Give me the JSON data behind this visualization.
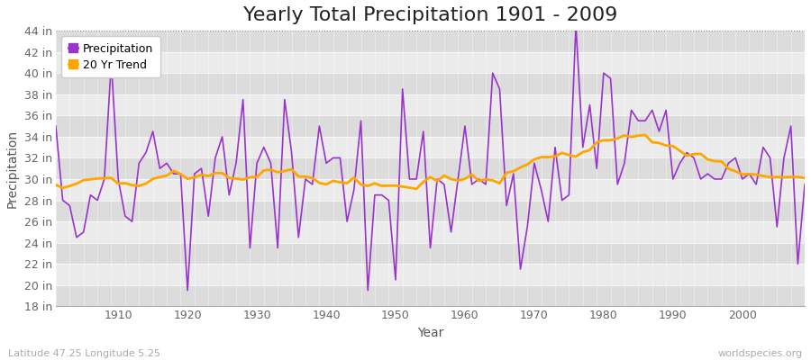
{
  "title": "Yearly Total Precipitation 1901 - 2009",
  "xlabel": "Year",
  "ylabel": "Precipitation",
  "years": [
    1901,
    1902,
    1903,
    1904,
    1905,
    1906,
    1907,
    1908,
    1909,
    1910,
    1911,
    1912,
    1913,
    1914,
    1915,
    1916,
    1917,
    1918,
    1919,
    1920,
    1921,
    1922,
    1923,
    1924,
    1925,
    1926,
    1927,
    1928,
    1929,
    1930,
    1931,
    1932,
    1933,
    1934,
    1935,
    1936,
    1937,
    1938,
    1939,
    1940,
    1941,
    1942,
    1943,
    1944,
    1945,
    1946,
    1947,
    1948,
    1949,
    1950,
    1951,
    1952,
    1953,
    1954,
    1955,
    1956,
    1957,
    1958,
    1959,
    1960,
    1961,
    1962,
    1963,
    1964,
    1965,
    1966,
    1967,
    1968,
    1969,
    1970,
    1971,
    1972,
    1973,
    1974,
    1975,
    1976,
    1977,
    1978,
    1979,
    1980,
    1981,
    1982,
    1983,
    1984,
    1985,
    1986,
    1987,
    1988,
    1989,
    1990,
    1991,
    1992,
    1993,
    1994,
    1995,
    1996,
    1997,
    1998,
    1999,
    2000,
    2001,
    2002,
    2003,
    2004,
    2005,
    2006,
    2007,
    2008,
    2009
  ],
  "precip": [
    35.0,
    28.0,
    27.5,
    24.5,
    25.0,
    28.5,
    28.0,
    30.0,
    41.0,
    30.0,
    26.5,
    26.0,
    31.5,
    32.5,
    34.5,
    31.0,
    31.5,
    30.5,
    30.5,
    19.5,
    30.5,
    31.0,
    26.5,
    32.0,
    34.0,
    28.5,
    31.5,
    37.5,
    23.5,
    31.5,
    33.0,
    31.5,
    23.5,
    37.5,
    32.5,
    24.5,
    30.0,
    29.5,
    35.0,
    31.5,
    32.0,
    32.0,
    26.0,
    29.0,
    35.5,
    19.5,
    28.5,
    28.5,
    28.0,
    20.5,
    38.5,
    30.0,
    30.0,
    34.5,
    23.5,
    30.0,
    29.5,
    25.0,
    30.0,
    35.0,
    29.5,
    30.0,
    29.5,
    40.0,
    38.5,
    27.5,
    30.5,
    21.5,
    25.5,
    31.5,
    29.0,
    26.0,
    33.0,
    28.0,
    28.5,
    44.5,
    33.0,
    37.0,
    31.0,
    40.0,
    39.5,
    29.5,
    31.5,
    36.5,
    35.5,
    35.5,
    36.5,
    34.5,
    36.5,
    30.0,
    31.5,
    32.5,
    32.0,
    30.0,
    30.5,
    30.0,
    30.0,
    31.5,
    32.0,
    30.0,
    30.5,
    29.5,
    33.0,
    32.0,
    25.5,
    32.0,
    35.0,
    22.0,
    29.5
  ],
  "precip_color": "#9933CC",
  "trend_color": "#FFA500",
  "bg_color": "#FFFFFF",
  "plot_bg_color": "#EBEBEB",
  "band_color_dark": "#DCDCDC",
  "band_color_light": "#EBEBEB",
  "ylim": [
    18,
    44
  ],
  "yticks": [
    18,
    20,
    22,
    24,
    26,
    28,
    30,
    32,
    34,
    36,
    38,
    40,
    42,
    44
  ],
  "xlim": [
    1901,
    2009
  ],
  "xticks": [
    1910,
    1920,
    1930,
    1940,
    1950,
    1960,
    1970,
    1980,
    1990,
    2000
  ],
  "footnote_left": "Latitude 47.25 Longitude 5.25",
  "footnote_right": "worldspecies.org",
  "title_fontsize": 16,
  "label_fontsize": 10,
  "tick_fontsize": 9,
  "footnote_fontsize": 8,
  "trend_window": 20
}
